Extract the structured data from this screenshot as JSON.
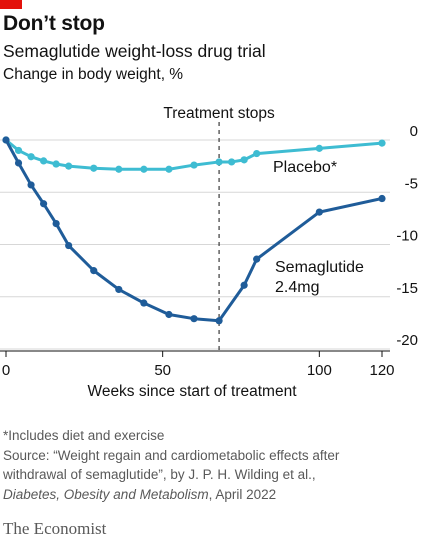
{
  "header": {
    "title": "Don’t stop",
    "subtitle": "Semaglutide weight-loss drug trial",
    "unit": "Change in body weight, %"
  },
  "chart_data": {
    "type": "line",
    "title": "Don’t stop",
    "subtitle": "Semaglutide weight-loss drug trial",
    "ylabel": "Change in body weight, %",
    "xlabel": "Weeks since start of treatment",
    "xlim": [
      0,
      124
    ],
    "ylim": [
      -20,
      1
    ],
    "xticks": [
      0,
      50,
      100,
      120
    ],
    "yticks": [
      0,
      -5,
      -10,
      -15,
      -20
    ],
    "grid": "horizontal",
    "annotation": {
      "label": "Treatment stops",
      "x": 68
    },
    "series": [
      {
        "name": "Placebo*",
        "color": "#3ebcd2",
        "x": [
          0,
          4,
          8,
          12,
          16,
          20,
          28,
          36,
          44,
          52,
          60,
          68,
          72,
          76,
          80,
          100,
          120
        ],
        "y": [
          0,
          -1.0,
          -1.6,
          -2.0,
          -2.3,
          -2.5,
          -2.7,
          -2.8,
          -2.8,
          -2.8,
          -2.4,
          -2.1,
          -2.1,
          -1.9,
          -1.3,
          -0.8,
          -0.3
        ]
      },
      {
        "name": "Semaglutide 2.4mg",
        "label_lines": [
          "Semaglutide",
          "2.4mg"
        ],
        "color": "#1f5c99",
        "x": [
          0,
          4,
          8,
          12,
          16,
          20,
          28,
          36,
          44,
          52,
          60,
          68,
          76,
          80,
          100,
          120
        ],
        "y": [
          0,
          -2.2,
          -4.3,
          -6.1,
          -8.0,
          -10.1,
          -12.5,
          -14.3,
          -15.6,
          -16.7,
          -17.1,
          -17.3,
          -13.9,
          -11.4,
          -6.9,
          -5.6
        ]
      }
    ]
  },
  "footnote": {
    "line1": "*Includes diet and exercise",
    "line2": "Source: “Weight regain and cardiometabolic effects after",
    "line3": "withdrawal of semaglutide”, by J. P. H. Wilding et al.,",
    "line4_italic": "Diabetes, Obesity and Metabolism",
    "line4_rest": ", April 2022"
  },
  "publisher": "The Economist"
}
